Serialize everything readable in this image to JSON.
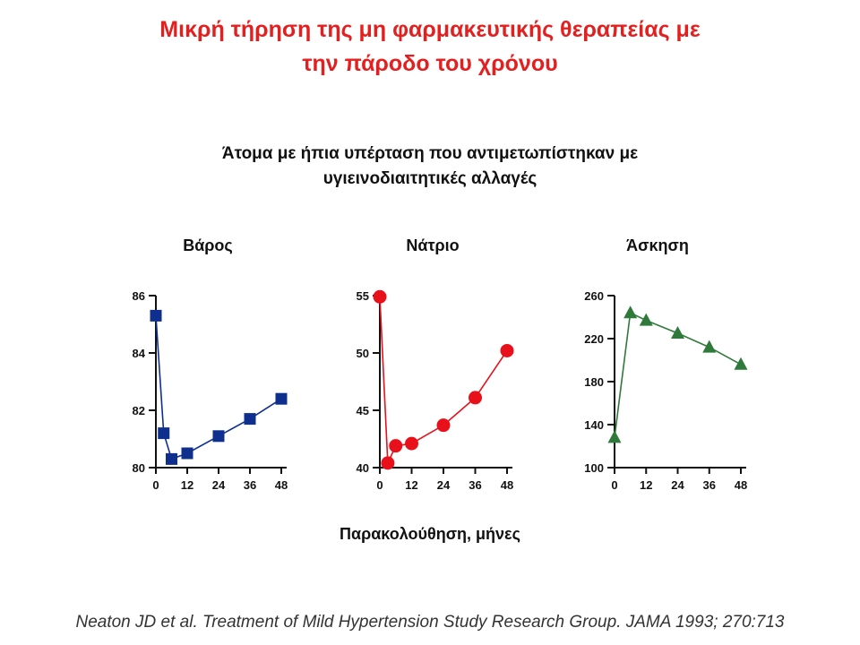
{
  "slide": {
    "title_line1": "Μικρή τήρηση της μη φαρμακευτικής θεραπείας με",
    "title_line2": "την πάροδο του χρόνου",
    "subtitle_line1": "Άτομα με ήπια υπέρταση που αντιμετωπίστηκαν με",
    "subtitle_line2": "υγιεινοδιαιτητικές αλλαγές",
    "xaxis_label": "Παρακολούθηση, μήνες",
    "citation": "Neaton JD et al. Treatment of Mild Hypertension Study Research Group. JAMA 1993; 270:713"
  },
  "colors": {
    "title": "#e41f1f",
    "weight": "#0f2f8f",
    "sodium": "#e8101a",
    "exercise": "#2f7a3a"
  },
  "chart_data": [
    {
      "type": "line",
      "title": "Βάρος",
      "marker": "square",
      "xlabel": "Παρακολούθηση, μήνες",
      "ylabel": "",
      "x": [
        0,
        3,
        6,
        12,
        24,
        36,
        48
      ],
      "values": [
        85.3,
        81.2,
        80.3,
        80.5,
        81.1,
        81.7,
        82.4
      ],
      "xlim": [
        0,
        48
      ],
      "ylim": [
        80,
        86
      ],
      "xticks": [
        0,
        12,
        24,
        36,
        48
      ],
      "yticks": [
        80,
        82,
        84,
        86
      ],
      "grid": false
    },
    {
      "type": "line",
      "title": "Νάτριο",
      "marker": "circle",
      "xlabel": "Παρακολούθηση, μήνες",
      "ylabel": "",
      "x": [
        0,
        3,
        6,
        12,
        24,
        36,
        48
      ],
      "values": [
        54.9,
        40.4,
        41.9,
        42.1,
        43.7,
        46.1,
        50.2
      ],
      "xlim": [
        0,
        48
      ],
      "ylim": [
        40,
        55
      ],
      "xticks": [
        0,
        12,
        24,
        36,
        48
      ],
      "yticks": [
        40,
        45,
        50,
        55
      ],
      "grid": false
    },
    {
      "type": "line",
      "title": "Άσκηση",
      "marker": "triangle",
      "xlabel": "Παρακολούθηση, μήνες",
      "ylabel": "",
      "x": [
        0,
        6,
        12,
        24,
        36,
        48
      ],
      "values": [
        128,
        244,
        237,
        225,
        212,
        196
      ],
      "xlim": [
        0,
        48
      ],
      "ylim": [
        100,
        260
      ],
      "xticks": [
        0,
        12,
        24,
        36,
        48
      ],
      "yticks": [
        100,
        140,
        180,
        220,
        260
      ],
      "grid": false
    }
  ]
}
